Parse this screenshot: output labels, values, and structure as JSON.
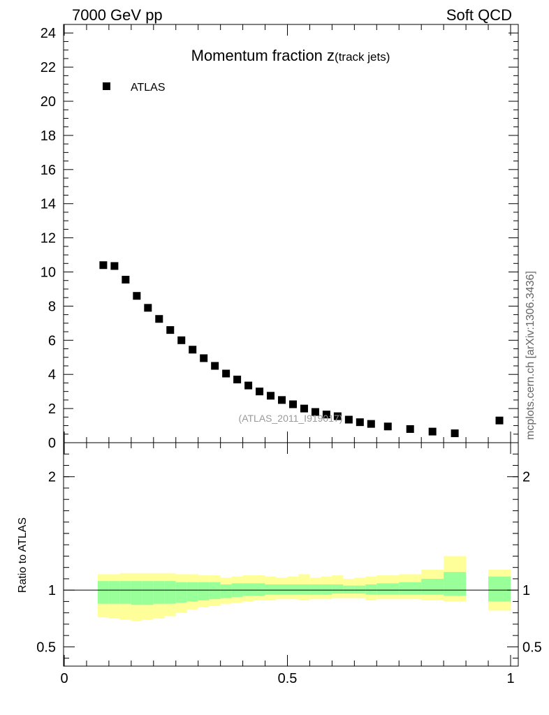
{
  "header": {
    "left": "7000 GeV pp",
    "right": "Soft QCD"
  },
  "side_label": "mcplots.cern.ch [arXiv:1306.3436]",
  "watermark": "(ATLAS_2011_I919017)",
  "chart_data": [
    {
      "type": "scatter",
      "title_main": "Momentum fraction z",
      "title_sub": "(track jets)",
      "xlim": [
        0,
        1
      ],
      "ylim": [
        0,
        24.5
      ],
      "yticks": [
        0,
        2,
        4,
        6,
        8,
        10,
        12,
        14,
        16,
        18,
        20,
        22,
        24
      ],
      "ytick_labels": [
        "0",
        "2",
        "4",
        "6",
        "8",
        "10",
        "12",
        "14",
        "16",
        "18",
        "20",
        "22",
        "24"
      ],
      "legend": {
        "position": "top-left",
        "entries": [
          "ATLAS"
        ]
      },
      "series": [
        {
          "name": "ATLAS",
          "marker": "square",
          "color": "#000000",
          "x": [
            0.0875,
            0.1125,
            0.1375,
            0.1625,
            0.1875,
            0.2125,
            0.2375,
            0.2625,
            0.2875,
            0.3125,
            0.3375,
            0.3625,
            0.3875,
            0.4125,
            0.4375,
            0.4625,
            0.4875,
            0.5125,
            0.5375,
            0.5625,
            0.5875,
            0.6125,
            0.6375,
            0.6625,
            0.6875,
            0.725,
            0.775,
            0.825,
            0.875,
            0.975
          ],
          "y": [
            10.4,
            10.35,
            9.55,
            8.6,
            7.9,
            7.25,
            6.6,
            6.0,
            5.45,
            4.95,
            4.5,
            4.05,
            3.7,
            3.35,
            3.0,
            2.75,
            2.5,
            2.25,
            2.0,
            1.8,
            1.65,
            1.55,
            1.35,
            1.2,
            1.1,
            0.95,
            0.8,
            0.65,
            0.55,
            1.3
          ]
        }
      ]
    },
    {
      "type": "area",
      "ylabel": "Ratio to ATLAS",
      "xlim": [
        0,
        1
      ],
      "ylim": [
        0.33,
        2.3
      ],
      "yticks": [
        0.5,
        1,
        2
      ],
      "ytick_labels": [
        "0.5",
        "1",
        "2"
      ],
      "xticks": [
        0,
        0.5,
        1
      ],
      "xtick_labels": [
        "0",
        "0.5",
        "1"
      ],
      "reference_line": 1,
      "bands": {
        "stat_color": "#99ff99",
        "total_color": "#ffff99",
        "bins": [
          {
            "x0": 0.075,
            "x1": 0.1,
            "stat_lo": 0.88,
            "stat_hi": 1.08,
            "tot_lo": 0.76,
            "tot_hi": 1.14
          },
          {
            "x0": 0.1,
            "x1": 0.125,
            "stat_lo": 0.88,
            "stat_hi": 1.08,
            "tot_lo": 0.75,
            "tot_hi": 1.14
          },
          {
            "x0": 0.125,
            "x1": 0.15,
            "stat_lo": 0.88,
            "stat_hi": 1.08,
            "tot_lo": 0.74,
            "tot_hi": 1.15
          },
          {
            "x0": 0.15,
            "x1": 0.175,
            "stat_lo": 0.87,
            "stat_hi": 1.08,
            "tot_lo": 0.73,
            "tot_hi": 1.15
          },
          {
            "x0": 0.175,
            "x1": 0.2,
            "stat_lo": 0.87,
            "stat_hi": 1.08,
            "tot_lo": 0.74,
            "tot_hi": 1.15
          },
          {
            "x0": 0.2,
            "x1": 0.225,
            "stat_lo": 0.88,
            "stat_hi": 1.08,
            "tot_lo": 0.75,
            "tot_hi": 1.15
          },
          {
            "x0": 0.225,
            "x1": 0.25,
            "stat_lo": 0.88,
            "stat_hi": 1.08,
            "tot_lo": 0.77,
            "tot_hi": 1.15
          },
          {
            "x0": 0.25,
            "x1": 0.275,
            "stat_lo": 0.89,
            "stat_hi": 1.07,
            "tot_lo": 0.8,
            "tot_hi": 1.14
          },
          {
            "x0": 0.275,
            "x1": 0.3,
            "stat_lo": 0.9,
            "stat_hi": 1.07,
            "tot_lo": 0.83,
            "tot_hi": 1.14
          },
          {
            "x0": 0.3,
            "x1": 0.325,
            "stat_lo": 0.91,
            "stat_hi": 1.07,
            "tot_lo": 0.85,
            "tot_hi": 1.13
          },
          {
            "x0": 0.325,
            "x1": 0.35,
            "stat_lo": 0.92,
            "stat_hi": 1.07,
            "tot_lo": 0.86,
            "tot_hi": 1.13
          },
          {
            "x0": 0.35,
            "x1": 0.375,
            "stat_lo": 0.93,
            "stat_hi": 1.05,
            "tot_lo": 0.88,
            "tot_hi": 1.11
          },
          {
            "x0": 0.375,
            "x1": 0.4,
            "stat_lo": 0.94,
            "stat_hi": 1.06,
            "tot_lo": 0.89,
            "tot_hi": 1.12
          },
          {
            "x0": 0.4,
            "x1": 0.425,
            "stat_lo": 0.95,
            "stat_hi": 1.06,
            "tot_lo": 0.9,
            "tot_hi": 1.13
          },
          {
            "x0": 0.425,
            "x1": 0.45,
            "stat_lo": 0.95,
            "stat_hi": 1.06,
            "tot_lo": 0.91,
            "tot_hi": 1.13
          },
          {
            "x0": 0.45,
            "x1": 0.475,
            "stat_lo": 0.96,
            "stat_hi": 1.05,
            "tot_lo": 0.91,
            "tot_hi": 1.12
          },
          {
            "x0": 0.475,
            "x1": 0.5,
            "stat_lo": 0.96,
            "stat_hi": 1.05,
            "tot_lo": 0.92,
            "tot_hi": 1.11
          },
          {
            "x0": 0.5,
            "x1": 0.525,
            "stat_lo": 0.96,
            "stat_hi": 1.05,
            "tot_lo": 0.92,
            "tot_hi": 1.12
          },
          {
            "x0": 0.525,
            "x1": 0.55,
            "stat_lo": 0.96,
            "stat_hi": 1.05,
            "tot_lo": 0.91,
            "tot_hi": 1.14
          },
          {
            "x0": 0.55,
            "x1": 0.575,
            "stat_lo": 0.96,
            "stat_hi": 1.05,
            "tot_lo": 0.92,
            "tot_hi": 1.11
          },
          {
            "x0": 0.575,
            "x1": 0.6,
            "stat_lo": 0.96,
            "stat_hi": 1.05,
            "tot_lo": 0.92,
            "tot_hi": 1.12
          },
          {
            "x0": 0.6,
            "x1": 0.625,
            "stat_lo": 0.97,
            "stat_hi": 1.05,
            "tot_lo": 0.93,
            "tot_hi": 1.13
          },
          {
            "x0": 0.625,
            "x1": 0.65,
            "stat_lo": 0.97,
            "stat_hi": 1.04,
            "tot_lo": 0.93,
            "tot_hi": 1.1
          },
          {
            "x0": 0.65,
            "x1": 0.675,
            "stat_lo": 0.97,
            "stat_hi": 1.04,
            "tot_lo": 0.93,
            "tot_hi": 1.11
          },
          {
            "x0": 0.675,
            "x1": 0.7,
            "stat_lo": 0.96,
            "stat_hi": 1.05,
            "tot_lo": 0.91,
            "tot_hi": 1.12
          },
          {
            "x0": 0.7,
            "x1": 0.75,
            "stat_lo": 0.96,
            "stat_hi": 1.06,
            "tot_lo": 0.92,
            "tot_hi": 1.13
          },
          {
            "x0": 0.75,
            "x1": 0.8,
            "stat_lo": 0.96,
            "stat_hi": 1.07,
            "tot_lo": 0.92,
            "tot_hi": 1.14
          },
          {
            "x0": 0.8,
            "x1": 0.85,
            "stat_lo": 0.96,
            "stat_hi": 1.1,
            "tot_lo": 0.91,
            "tot_hi": 1.18
          },
          {
            "x0": 0.85,
            "x1": 0.9,
            "stat_lo": 0.95,
            "stat_hi": 1.16,
            "tot_lo": 0.9,
            "tot_hi": 1.3
          },
          {
            "x0": 0.95,
            "x1": 1.0,
            "stat_lo": 0.9,
            "stat_hi": 1.12,
            "tot_lo": 0.82,
            "tot_hi": 1.18
          }
        ]
      }
    }
  ]
}
